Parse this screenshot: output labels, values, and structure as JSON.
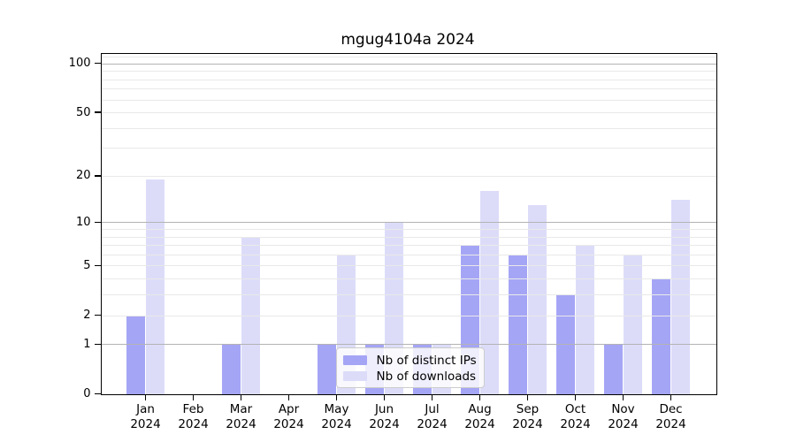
{
  "title": "mgug4104a 2024",
  "chart_data": {
    "type": "bar",
    "title": "mgug4104a 2024",
    "months": [
      "Jan",
      "Feb",
      "Mar",
      "Apr",
      "May",
      "Jun",
      "Jul",
      "Aug",
      "Sep",
      "Oct",
      "Nov",
      "Dec"
    ],
    "year": "2024",
    "series": [
      {
        "name": "Nb of distinct IPs",
        "values": [
          2,
          0,
          1,
          0,
          1,
          1,
          1,
          7,
          6,
          3,
          1,
          4
        ]
      },
      {
        "name": "Nb of downloads",
        "values": [
          19,
          0,
          8,
          0,
          6,
          10,
          1,
          16,
          13,
          7,
          6,
          14
        ]
      }
    ],
    "yscale": "log10(1+x)",
    "yticks": [
      0,
      1,
      2,
      5,
      10,
      20,
      50,
      100
    ],
    "ylim": [
      0,
      115
    ],
    "grid": true,
    "legend_position": "lower-center"
  },
  "colors": {
    "distinct_ips": "#a5a5f6",
    "downloads": "#dcdcf9",
    "grid_minor": "#e9e9e9",
    "grid_major": "#b3b3b3",
    "axis": "#000000",
    "legend_border": "#cccccc"
  }
}
